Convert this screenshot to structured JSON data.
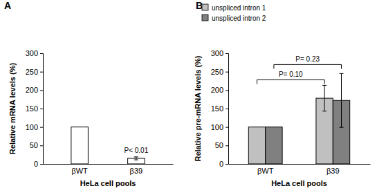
{
  "chart_data": [
    {
      "type": "bar",
      "title": "A",
      "categories": [
        "βWT",
        "β39"
      ],
      "values": [
        100,
        15
      ],
      "errors": [
        null,
        4
      ],
      "color": "#ffffff",
      "xlabel": "HeLa cell pools",
      "ylabel": "Relative mRNA levels (%)",
      "ylim": [
        0,
        300
      ],
      "yticks": [
        0,
        50,
        100,
        150,
        200,
        250,
        300
      ],
      "annotations": [
        "P< 0.01"
      ]
    },
    {
      "type": "bar",
      "title": "B",
      "categories": [
        "βWT",
        "β39"
      ],
      "series": [
        {
          "name": "unspliced intron 1",
          "color": "#c0c0c0",
          "values": [
            100,
            178
          ],
          "errors": [
            null,
            35
          ]
        },
        {
          "name": "unspliced intron 2",
          "color": "#808080",
          "values": [
            100,
            172
          ],
          "errors": [
            null,
            73
          ]
        }
      ],
      "xlabel": "HeLa cell pools",
      "ylabel": "Relative pre-mRNA levels (%)",
      "ylim": [
        0,
        300
      ],
      "yticks": [
        0,
        50,
        100,
        150,
        200,
        250,
        300
      ],
      "legend": "top-left",
      "annotations": [
        "P= 0.10",
        "P= 0.23"
      ]
    }
  ]
}
